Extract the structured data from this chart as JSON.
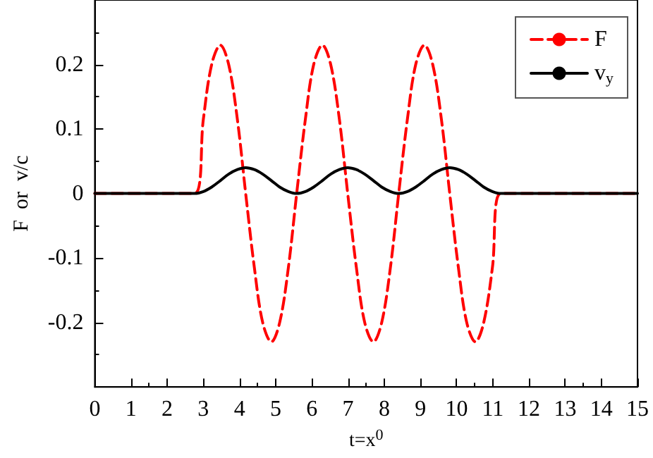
{
  "chart_data": {
    "type": "line",
    "xlabel": "t=x$^{0}$",
    "ylabel": "F  or  v/c",
    "x": [
      0,
      2.76,
      3.0,
      3.23,
      3.47,
      3.7,
      3.94,
      4.17,
      4.41,
      4.64,
      4.88,
      5.11,
      5.35,
      5.58,
      5.82,
      6.05,
      6.29,
      6.52,
      6.76,
      6.99,
      7.23,
      7.46,
      7.7,
      7.93,
      8.17,
      8.4,
      8.64,
      8.87,
      9.11,
      9.34,
      9.58,
      9.81,
      10.05,
      10.28,
      10.52,
      10.75,
      10.99,
      11.22,
      15
    ],
    "series": [
      {
        "name": "F",
        "color": "#ff0000",
        "line_style": "dashed",
        "values": [
          0,
          0,
          0.115,
          0.2,
          0.23,
          0.2,
          0.115,
          0,
          -0.115,
          -0.2,
          -0.23,
          -0.2,
          -0.115,
          0,
          0.115,
          0.2,
          0.23,
          0.2,
          0.115,
          0,
          -0.115,
          -0.2,
          -0.23,
          -0.2,
          -0.115,
          0,
          0.115,
          0.2,
          0.23,
          0.2,
          0.115,
          0,
          -0.115,
          -0.2,
          -0.23,
          -0.2,
          -0.115,
          0,
          0
        ]
      },
      {
        "name": "v$_{y}$",
        "color": "#000000",
        "line_style": "solid",
        "values": [
          0,
          0,
          0.003,
          0.01,
          0.02,
          0.03,
          0.037,
          0.04,
          0.037,
          0.03,
          0.02,
          0.01,
          0.003,
          0,
          0.003,
          0.01,
          0.02,
          0.03,
          0.037,
          0.04,
          0.037,
          0.03,
          0.02,
          0.01,
          0.003,
          0,
          0.003,
          0.01,
          0.02,
          0.03,
          0.037,
          0.04,
          0.037,
          0.03,
          0.02,
          0.01,
          0.003,
          0,
          0
        ]
      }
    ],
    "xlim": [
      0,
      15
    ],
    "xticks": [
      0,
      1,
      2,
      3,
      4,
      5,
      6,
      7,
      8,
      9,
      10,
      11,
      12,
      13,
      14,
      15
    ],
    "ylim": [
      -0.3,
      0.3
    ],
    "yticks": [
      -0.2,
      -0.1,
      0,
      0.1,
      0.2
    ],
    "grid": false,
    "legend": "top right",
    "marker": "none"
  }
}
